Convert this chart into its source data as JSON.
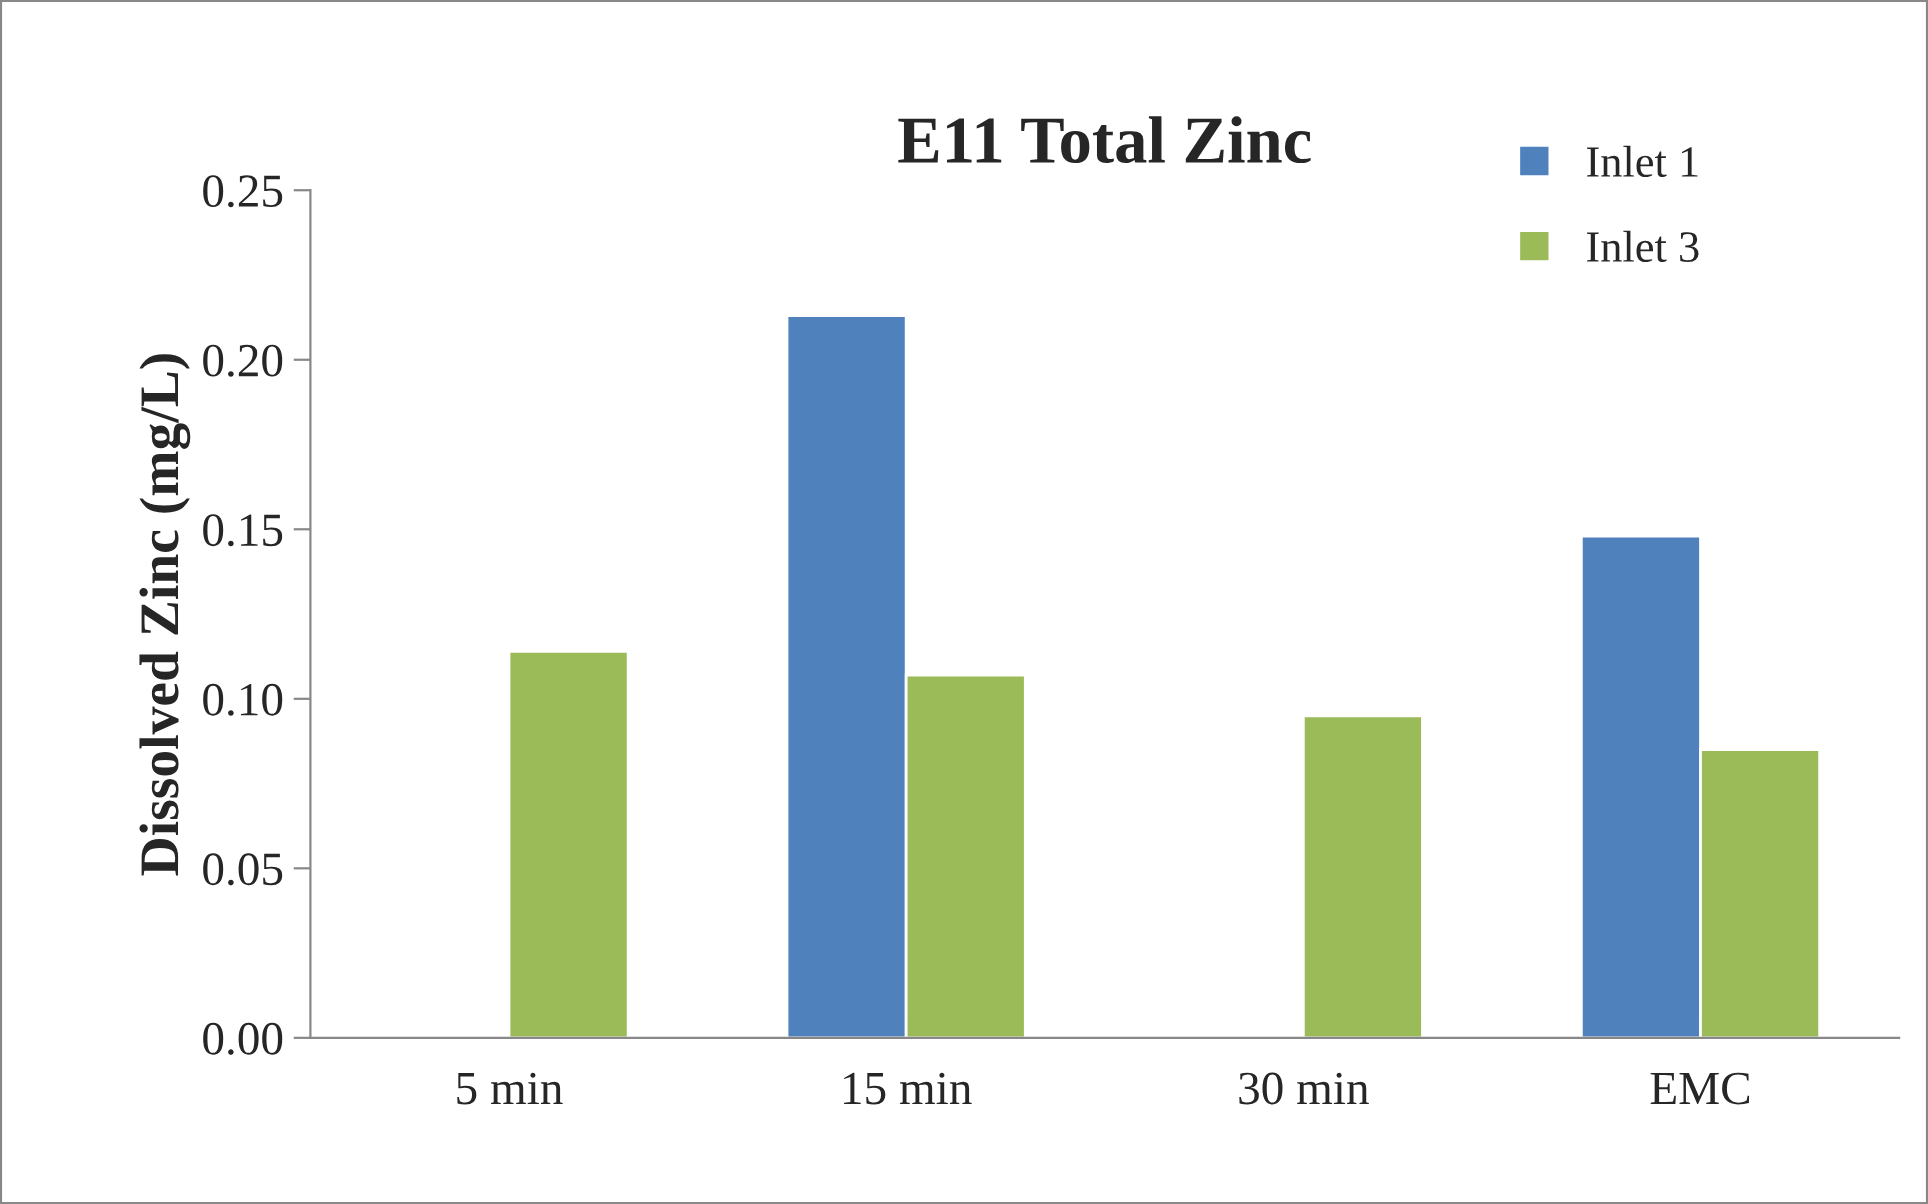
{
  "chart_data": {
    "type": "bar",
    "title": "E11 Total Zinc",
    "ylabel": "Dissolved Zinc (mg/L)",
    "categories": [
      "5 min",
      "15 min",
      "30 min",
      "EMC"
    ],
    "series": [
      {
        "name": "Inlet 1",
        "color": "#4f81bd",
        "values": [
          null,
          0.213,
          null,
          0.148
        ]
      },
      {
        "name": "Inlet 3",
        "color": "#9bbb59",
        "values": [
          0.114,
          0.107,
          0.095,
          0.085
        ]
      }
    ],
    "ylim": [
      0,
      0.25
    ],
    "yticks": [
      {
        "value": 0,
        "label": "0.00"
      },
      {
        "value": 0.05,
        "label": "0.05"
      },
      {
        "value": 0.1,
        "label": "0.10"
      },
      {
        "value": 0.15,
        "label": "0.15"
      },
      {
        "value": 0.2,
        "label": "0.20"
      },
      {
        "value": 0.25,
        "label": "0.25"
      }
    ],
    "grid": false,
    "legend": "top right"
  }
}
